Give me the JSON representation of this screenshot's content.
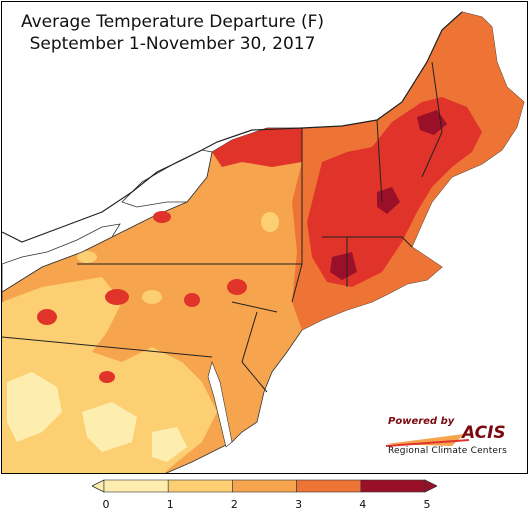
{
  "title": {
    "line1": "Average Temperature Departure (F)",
    "line2": "September 1-November 30, 2017"
  },
  "logo": {
    "powered_by": "Powered by",
    "name": "ACIS",
    "subtitle": "Regional Climate Centers"
  },
  "legend": {
    "ticks": [
      "0",
      "1",
      "2",
      "3",
      "4",
      "5"
    ],
    "colors": [
      "#fdeeb0",
      "#fccf72",
      "#f6a44e",
      "#ee7436",
      "#e0342a",
      "#9a1028"
    ],
    "arrows": {
      "low": "#fdeeb0",
      "high": "#9a1028"
    }
  },
  "map": {
    "region": "Northeast United States",
    "dominant_range_F": [
      2,
      4
    ],
    "highest_range_F": [
      4,
      5
    ],
    "lowest_range_F": [
      0,
      1
    ]
  }
}
